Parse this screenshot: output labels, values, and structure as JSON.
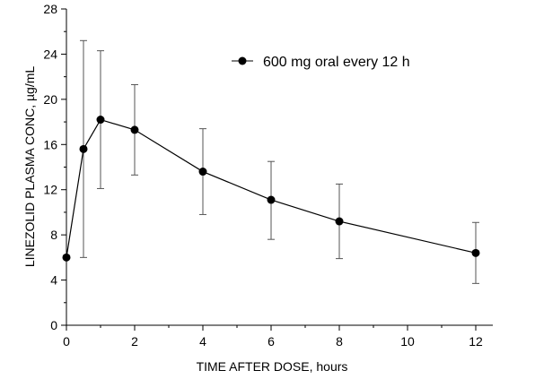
{
  "chart_data": {
    "type": "line",
    "xlabel": "TIME AFTER DOSE, hours",
    "ylabel": "LINEZOLID PLASMA CONC, µg/mL",
    "xlim": [
      0,
      12.5
    ],
    "ylim": [
      0,
      28
    ],
    "x_ticks": [
      0,
      2,
      4,
      6,
      8,
      10,
      12
    ],
    "y_ticks": [
      0,
      4,
      8,
      12,
      16,
      20,
      24,
      28
    ],
    "grid": false,
    "legend_position": "top-right",
    "series": [
      {
        "name": "600 mg oral every 12 h",
        "marker": "filled-circle",
        "color": "#000000",
        "x": [
          0,
          0.5,
          1,
          2,
          4,
          6,
          8,
          12
        ],
        "y": [
          6.0,
          15.6,
          18.2,
          17.3,
          13.6,
          11.1,
          9.2,
          6.4
        ],
        "error_lower": [
          6.0,
          6.0,
          12.1,
          13.3,
          9.8,
          7.6,
          5.9,
          3.7
        ],
        "error_upper": [
          6.0,
          25.2,
          24.3,
          21.3,
          17.4,
          14.5,
          12.5,
          9.1
        ]
      }
    ]
  }
}
